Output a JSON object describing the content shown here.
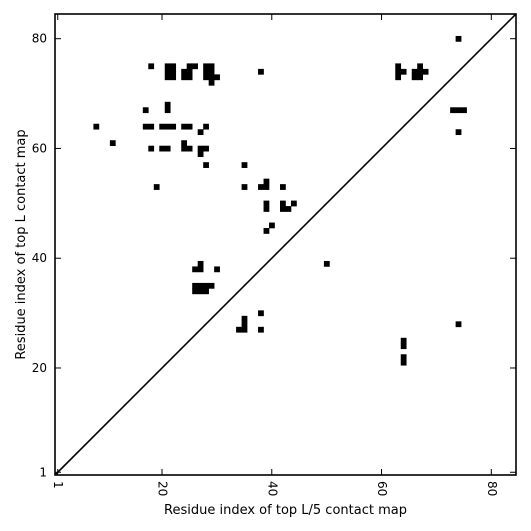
{
  "chart_data": {
    "type": "heatmap",
    "title": "",
    "xlabel": "Residue index of top L/5 contact map",
    "ylabel": "Residue index of top L contact map",
    "xlim": [
      1,
      84
    ],
    "ylim": [
      1,
      84
    ],
    "x_ticks": [
      1,
      20,
      40,
      60,
      80
    ],
    "y_ticks": [
      1,
      20,
      40,
      60,
      80
    ],
    "diagonal_line": true,
    "grid": false,
    "colors": {
      "cell": "#000000",
      "background": "#ffffff",
      "frame": "#000000"
    },
    "upper_triangle_contacts": [
      [
        74,
        80
      ],
      [
        18,
        75
      ],
      [
        21,
        75
      ],
      [
        22,
        75
      ],
      [
        25,
        75
      ],
      [
        26,
        75
      ],
      [
        28,
        75
      ],
      [
        29,
        75
      ],
      [
        21,
        74
      ],
      [
        22,
        74
      ],
      [
        24,
        74
      ],
      [
        25,
        74
      ],
      [
        28,
        74
      ],
      [
        29,
        74
      ],
      [
        38,
        74
      ],
      [
        21,
        73
      ],
      [
        22,
        73
      ],
      [
        24,
        73
      ],
      [
        25,
        73
      ],
      [
        28,
        73
      ],
      [
        29,
        73
      ],
      [
        30,
        73
      ],
      [
        29,
        72
      ],
      [
        63,
        75
      ],
      [
        67,
        75
      ],
      [
        63,
        74
      ],
      [
        64,
        74
      ],
      [
        66,
        74
      ],
      [
        67,
        74
      ],
      [
        68,
        74
      ],
      [
        63,
        73
      ],
      [
        66,
        73
      ],
      [
        67,
        73
      ],
      [
        21,
        68
      ],
      [
        17,
        67
      ],
      [
        21,
        67
      ],
      [
        73,
        67
      ],
      [
        74,
        67
      ],
      [
        75,
        67
      ],
      [
        8,
        64
      ],
      [
        17,
        64
      ],
      [
        18,
        64
      ],
      [
        20,
        64
      ],
      [
        21,
        64
      ],
      [
        22,
        64
      ],
      [
        24,
        64
      ],
      [
        25,
        64
      ],
      [
        28,
        64
      ],
      [
        27,
        63
      ],
      [
        74,
        63
      ],
      [
        11,
        61
      ],
      [
        24,
        61
      ],
      [
        18,
        60
      ],
      [
        20,
        60
      ],
      [
        21,
        60
      ],
      [
        24,
        60
      ],
      [
        25,
        60
      ],
      [
        27,
        60
      ],
      [
        28,
        60
      ],
      [
        27,
        59
      ],
      [
        28,
        57
      ],
      [
        35,
        57
      ],
      [
        39,
        54
      ],
      [
        19,
        53
      ],
      [
        35,
        53
      ],
      [
        38,
        53
      ],
      [
        39,
        53
      ],
      [
        42,
        53
      ],
      [
        42,
        50
      ],
      [
        44,
        50
      ],
      [
        39,
        50
      ],
      [
        39,
        49
      ],
      [
        42,
        49
      ],
      [
        43,
        49
      ],
      [
        40,
        46
      ],
      [
        39,
        45
      ]
    ],
    "lower_triangle_contacts": [
      [
        50,
        39
      ],
      [
        27,
        39
      ],
      [
        26,
        38
      ],
      [
        27,
        38
      ],
      [
        30,
        38
      ],
      [
        26,
        35
      ],
      [
        27,
        35
      ],
      [
        28,
        35
      ],
      [
        29,
        35
      ],
      [
        26,
        34
      ],
      [
        27,
        34
      ],
      [
        28,
        34
      ],
      [
        38,
        30
      ],
      [
        35,
        29
      ],
      [
        35,
        28
      ],
      [
        34,
        27
      ],
      [
        35,
        27
      ],
      [
        38,
        27
      ],
      [
        74,
        28
      ],
      [
        64,
        25
      ],
      [
        64,
        24
      ],
      [
        64,
        22
      ],
      [
        64,
        21
      ]
    ]
  }
}
